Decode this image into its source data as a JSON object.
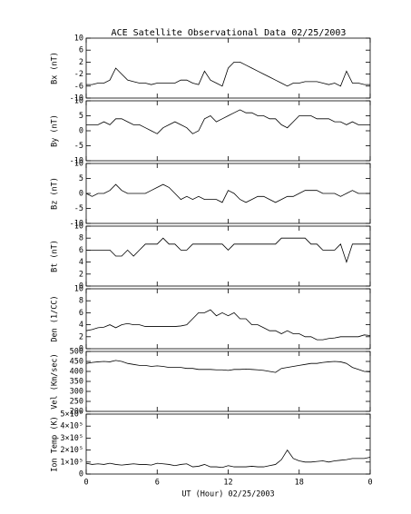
{
  "chart_data": [
    {
      "type": "line",
      "title": "ACE Satellite Observational Data   02/25/2003",
      "ylabel": "Bx (nT)",
      "color": "#000000",
      "x": [
        0,
        0.5,
        1,
        1.5,
        2,
        2.5,
        3,
        3.5,
        4,
        4.5,
        5,
        5.5,
        6,
        6.5,
        7,
        7.5,
        8,
        8.5,
        9,
        9.5,
        10,
        10.5,
        11,
        11.5,
        12,
        12.5,
        13,
        13.5,
        14,
        14.5,
        15,
        15.5,
        16,
        16.5,
        17,
        17.5,
        18,
        18.5,
        19,
        19.5,
        20,
        20.5,
        21,
        21.5,
        22,
        22.5,
        23,
        23.5,
        24
      ],
      "values": [
        -5.5,
        -5.5,
        -5,
        -5,
        -4,
        0,
        -2,
        -4,
        -4.5,
        -5,
        -5,
        -5.5,
        -5,
        -5,
        -5,
        -5,
        -4,
        -4,
        -5,
        -5.5,
        -1,
        -4,
        -5,
        -6,
        0,
        2,
        2,
        1,
        0,
        -1,
        -2,
        -3,
        -4,
        -5,
        -6,
        -5,
        -5,
        -4.5,
        -4.5,
        -4.5,
        -5,
        -5.5,
        -5,
        -6,
        -1,
        -5,
        -5,
        -5.5,
        -5.5
      ],
      "ylim": [
        -10,
        10
      ],
      "yticks": [
        -10,
        -6,
        -2,
        2,
        6,
        10
      ]
    },
    {
      "type": "line",
      "ylabel": "By (nT)",
      "color": "#000000",
      "x": [
        0,
        0.5,
        1,
        1.5,
        2,
        2.5,
        3,
        3.5,
        4,
        4.5,
        5,
        5.5,
        6,
        6.5,
        7,
        7.5,
        8,
        8.5,
        9,
        9.5,
        10,
        10.5,
        11,
        11.5,
        12,
        12.5,
        13,
        13.5,
        14,
        14.5,
        15,
        15.5,
        16,
        16.5,
        17,
        17.5,
        18,
        18.5,
        19,
        19.5,
        20,
        20.5,
        21,
        21.5,
        22,
        22.5,
        23,
        23.5,
        24
      ],
      "values": [
        2,
        2,
        2,
        3,
        2,
        4,
        4,
        3,
        2,
        2,
        1,
        0,
        -1,
        1,
        2,
        3,
        2,
        1,
        -1,
        0,
        4,
        5,
        3,
        4,
        5,
        6,
        7,
        6,
        6,
        5,
        5,
        4,
        4,
        2,
        1,
        3,
        5,
        5,
        5,
        4,
        4,
        4,
        3,
        3,
        2,
        3,
        2,
        2,
        2
      ],
      "ylim": [
        -10,
        10
      ],
      "yticks": [
        -10,
        -5,
        0,
        5,
        10
      ]
    },
    {
      "type": "line",
      "ylabel": "Bz (nT)",
      "color": "#000000",
      "x": [
        0,
        0.5,
        1,
        1.5,
        2,
        2.5,
        3,
        3.5,
        4,
        4.5,
        5,
        5.5,
        6,
        6.5,
        7,
        7.5,
        8,
        8.5,
        9,
        9.5,
        10,
        10.5,
        11,
        11.5,
        12,
        12.5,
        13,
        13.5,
        14,
        14.5,
        15,
        15.5,
        16,
        16.5,
        17,
        17.5,
        18,
        18.5,
        19,
        19.5,
        20,
        20.5,
        21,
        21.5,
        22,
        22.5,
        23,
        23.5,
        24
      ],
      "values": [
        0,
        -1,
        0,
        0,
        1,
        3,
        1,
        0,
        0,
        0,
        0,
        1,
        2,
        3,
        2,
        0,
        -2,
        -1,
        -2,
        -1,
        -2,
        -2,
        -2,
        -3,
        1,
        0,
        -2,
        -3,
        -2,
        -1,
        -1,
        -2,
        -3,
        -2,
        -1,
        -1,
        0,
        1,
        1,
        1,
        0,
        0,
        0,
        -1,
        0,
        1,
        0,
        0,
        0
      ],
      "ylim": [
        -10,
        10
      ],
      "yticks": [
        -10,
        -5,
        0,
        5,
        10
      ]
    },
    {
      "type": "line",
      "ylabel": "Bt (nT)",
      "color": "#000000",
      "x": [
        0,
        0.5,
        1,
        1.5,
        2,
        2.5,
        3,
        3.5,
        4,
        4.5,
        5,
        5.5,
        6,
        6.5,
        7,
        7.5,
        8,
        8.5,
        9,
        9.5,
        10,
        10.5,
        11,
        11.5,
        12,
        12.5,
        13,
        13.5,
        14,
        14.5,
        15,
        15.5,
        16,
        16.5,
        17,
        17.5,
        18,
        18.5,
        19,
        19.5,
        20,
        20.5,
        21,
        21.5,
        22,
        22.5,
        23,
        23.5,
        24
      ],
      "values": [
        6,
        6,
        6,
        6,
        6,
        5,
        5,
        6,
        5,
        6,
        7,
        7,
        7,
        8,
        7,
        7,
        6,
        6,
        7,
        7,
        7,
        7,
        7,
        7,
        6,
        7,
        7,
        7,
        7,
        7,
        7,
        7,
        7,
        8,
        8,
        8,
        8,
        8,
        7,
        7,
        6,
        6,
        6,
        7,
        4,
        7,
        7,
        7,
        7
      ],
      "ylim": [
        0,
        10
      ],
      "yticks": [
        0,
        2,
        4,
        6,
        8,
        10
      ]
    },
    {
      "type": "line",
      "ylabel": "Den (1/CC)",
      "color": "#000000",
      "x": [
        0,
        0.5,
        1,
        1.5,
        2,
        2.5,
        3,
        3.5,
        4,
        4.5,
        5,
        5.5,
        6,
        6.5,
        7,
        7.5,
        8,
        8.5,
        9,
        9.5,
        10,
        10.5,
        11,
        11.5,
        12,
        12.5,
        13,
        13.5,
        14,
        14.5,
        15,
        15.5,
        16,
        16.5,
        17,
        17.5,
        18,
        18.5,
        19,
        19.5,
        20,
        20.5,
        21,
        21.5,
        22,
        22.5,
        23,
        23.5,
        24
      ],
      "values": [
        3,
        3.2,
        3.5,
        3.6,
        4,
        3.5,
        4,
        4.2,
        4,
        4,
        3.7,
        3.7,
        3.7,
        3.7,
        3.7,
        3.7,
        3.8,
        4,
        5,
        6,
        6,
        6.5,
        5.5,
        6,
        5.5,
        6,
        5,
        5,
        4,
        4,
        3.5,
        3,
        3,
        2.5,
        3,
        2.5,
        2.5,
        2,
        2,
        1.5,
        1.5,
        1.7,
        1.8,
        2,
        2,
        2,
        2,
        2.3,
        2.2
      ],
      "ylim": [
        0,
        10
      ],
      "yticks": [
        0,
        2,
        4,
        6,
        8,
        10
      ]
    },
    {
      "type": "line",
      "ylabel": "Vel (Km/sec)",
      "color": "#000000",
      "x": [
        0,
        0.5,
        1,
        1.5,
        2,
        2.5,
        3,
        3.5,
        4,
        4.5,
        5,
        5.5,
        6,
        6.5,
        7,
        7.5,
        8,
        8.5,
        9,
        9.5,
        10,
        10.5,
        11,
        11.5,
        12,
        12.5,
        13,
        13.5,
        14,
        14.5,
        15,
        15.5,
        16,
        16.5,
        17,
        17.5,
        18,
        18.5,
        19,
        19.5,
        20,
        20.5,
        21,
        21.5,
        22,
        22.5,
        23,
        23.5,
        24
      ],
      "values": [
        440,
        445,
        448,
        450,
        448,
        455,
        450,
        440,
        435,
        430,
        430,
        425,
        428,
        425,
        420,
        420,
        420,
        415,
        415,
        410,
        410,
        410,
        408,
        408,
        405,
        410,
        410,
        412,
        410,
        408,
        405,
        400,
        395,
        415,
        420,
        425,
        430,
        435,
        440,
        440,
        445,
        448,
        450,
        448,
        440,
        420,
        410,
        400,
        398
      ],
      "ylim": [
        200,
        500
      ],
      "yticks": [
        200,
        250,
        300,
        350,
        400,
        450,
        500
      ]
    },
    {
      "type": "line",
      "ylabel": "Ion Temp (K)",
      "color": "#000000",
      "x": [
        0,
        0.5,
        1,
        1.5,
        2,
        2.5,
        3,
        3.5,
        4,
        4.5,
        5,
        5.5,
        6,
        6.5,
        7,
        7.5,
        8,
        8.5,
        9,
        9.5,
        10,
        10.5,
        11,
        11.5,
        12,
        12.5,
        13,
        13.5,
        14,
        14.5,
        15,
        15.5,
        16,
        16.5,
        17,
        17.5,
        18,
        18.5,
        19,
        19.5,
        20,
        20.5,
        21,
        21.5,
        22,
        22.5,
        23,
        23.5,
        24
      ],
      "values": [
        90000,
        80000,
        85000,
        80000,
        90000,
        80000,
        75000,
        80000,
        85000,
        80000,
        80000,
        75000,
        90000,
        85000,
        80000,
        70000,
        80000,
        85000,
        60000,
        65000,
        80000,
        60000,
        60000,
        55000,
        70000,
        60000,
        60000,
        60000,
        65000,
        60000,
        60000,
        70000,
        80000,
        120000,
        200000,
        130000,
        110000,
        100000,
        100000,
        105000,
        110000,
        100000,
        110000,
        115000,
        120000,
        130000,
        130000,
        130000,
        140000
      ],
      "ylim": [
        0,
        500000
      ],
      "yticks": [
        0,
        {
          "value": 100000,
          "label": "1×10⁵"
        },
        {
          "value": 200000,
          "label": "2×10⁵"
        },
        {
          "value": 300000,
          "label": "3×10⁵"
        },
        {
          "value": 400000,
          "label": "4×10⁵"
        },
        {
          "value": 500000,
          "label": "5×10⁵"
        }
      ],
      "xlim": [
        0,
        24
      ],
      "xticks": [
        0,
        6,
        12,
        18,
        {
          "value": 24,
          "label": "0"
        }
      ],
      "xlabel": "UT (Hour)  02/25/2003"
    }
  ]
}
